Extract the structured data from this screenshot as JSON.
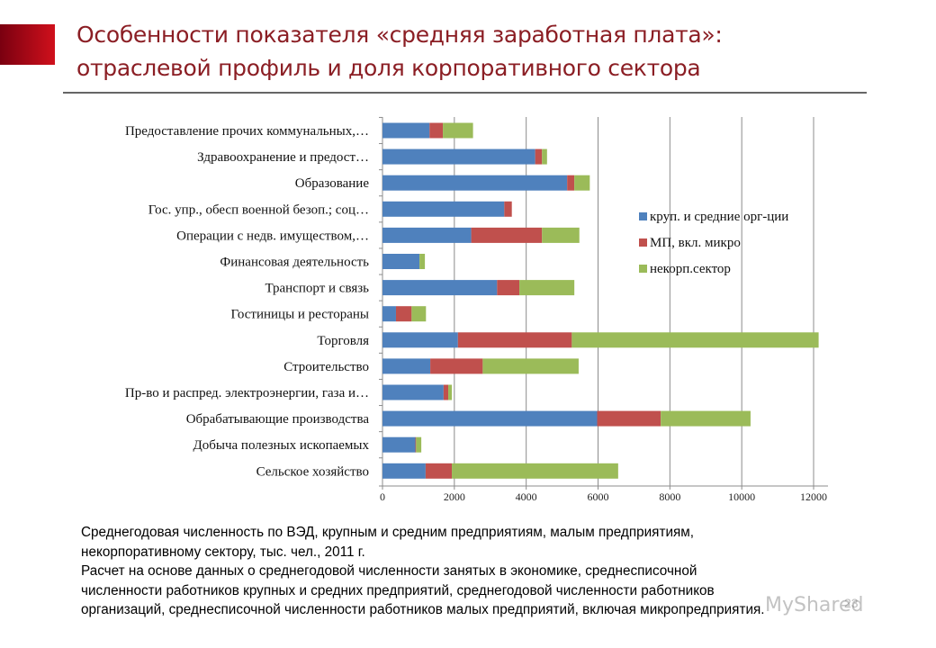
{
  "header": {
    "line1": "Особенности показателя «средняя заработная плата»:",
    "line2": "отраслевой профиль и доля корпоративного сектора"
  },
  "chart_data": {
    "type": "bar",
    "orientation": "horizontal",
    "stacked": true,
    "categories": [
      "Предоставление прочих коммунальных,…",
      "Здравоохранение и предост…",
      "Образование",
      "Гос. упр., обесп военной безоп.; соц…",
      "Операции с недв. имуществом,…",
      "Финансовая деятельность",
      "Транспорт и связь",
      "Гостиницы и рестораны",
      "Торговля",
      "Строительство",
      "Пр-во и распред. электроэнергии, газа и…",
      "Обрабатывающие производства",
      "Добыча полезных ископаемых",
      "Сельское хозяйство"
    ],
    "series": [
      {
        "name": "круп. и средние орг-ции",
        "color": "#4f81bd",
        "values": [
          1310,
          4250,
          5140,
          3390,
          2470,
          1030,
          3190,
          375,
          2100,
          1330,
          1700,
          5975,
          915,
          1200
        ]
      },
      {
        "name": "МП, вкл. микро",
        "color": "#c0504d",
        "values": [
          370,
          190,
          200,
          210,
          1970,
          0,
          620,
          435,
          3170,
          1460,
          130,
          1770,
          20,
          730
        ]
      },
      {
        "name": "некорп.сектор",
        "color": "#9bbb59",
        "values": [
          840,
          140,
          430,
          0,
          1040,
          150,
          1530,
          400,
          6870,
          2670,
          100,
          2500,
          145,
          4630
        ]
      }
    ],
    "xlim": [
      0,
      12000
    ],
    "xticks": [
      "0",
      "2000",
      "4000",
      "6000",
      "8000",
      "10000",
      "12000"
    ],
    "grid": true,
    "legend": "right"
  },
  "notes": {
    "line1": "Среднегодовая численность по ВЭД, крупным и средним предприятиям, малым предприятиям,",
    "line2": "некорпоративному сектору, тыс. чел., 2011 г.",
    "line3": "Расчет на основе данных о среднегодовой численности занятых в экономике, среднесписочной",
    "line4": "численности работников крупных и средних предприятий, среднегодовой численности работников",
    "line5": "организаций, среднесписочной численности работников малых предприятий, включая микропредприятия."
  },
  "watermark": "MyShared",
  "page_number": "23"
}
